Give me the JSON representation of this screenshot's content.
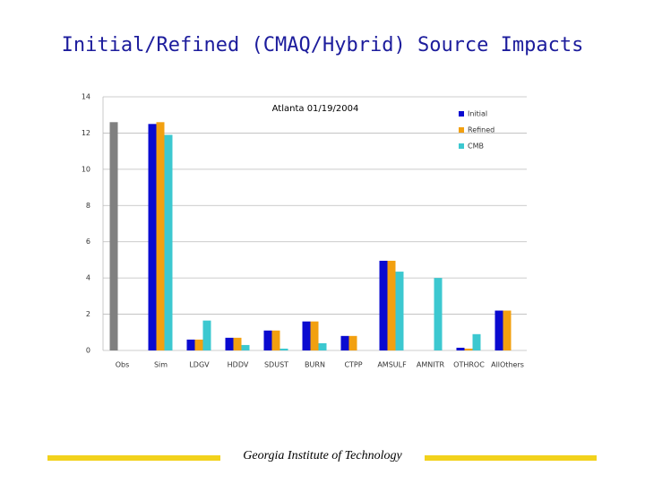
{
  "slide_title": "Initial/Refined (CMAQ/Hybrid) Source Impacts",
  "footer": "Georgia Institute of Technology",
  "chart_data": {
    "type": "bar",
    "title": "Atlanta 01/19/2004",
    "categories": [
      "Obs",
      "Sim",
      "LDGV",
      "HDDV",
      "SDUST",
      "BURN",
      "CTPP",
      "AMSULF",
      "AMNITR",
      "OTHROC",
      "AllOthers"
    ],
    "series": [
      {
        "name": "Initial",
        "color": "#0a0ad0",
        "values": [
          null,
          12.5,
          0.6,
          0.7,
          1.1,
          1.6,
          0.8,
          4.95,
          null,
          0.15,
          2.2
        ]
      },
      {
        "name": "Refined",
        "color": "#f2a010",
        "values": [
          null,
          12.6,
          0.6,
          0.7,
          1.1,
          1.6,
          0.8,
          4.95,
          null,
          0.1,
          2.2
        ]
      },
      {
        "name": "CMB",
        "color": "#3cc8d0",
        "values": [
          null,
          11.9,
          1.65,
          0.3,
          0.1,
          0.4,
          null,
          4.35,
          4.0,
          0.9,
          null
        ]
      },
      {
        "color": "#808080",
        "values": [
          12.6,
          null,
          null,
          null,
          null,
          null,
          null,
          null,
          null,
          null,
          null
        ]
      }
    ],
    "ylim": [
      0,
      14
    ],
    "yticks": [
      0,
      2,
      4,
      6,
      8,
      10,
      12,
      14
    ],
    "grid": true
  }
}
